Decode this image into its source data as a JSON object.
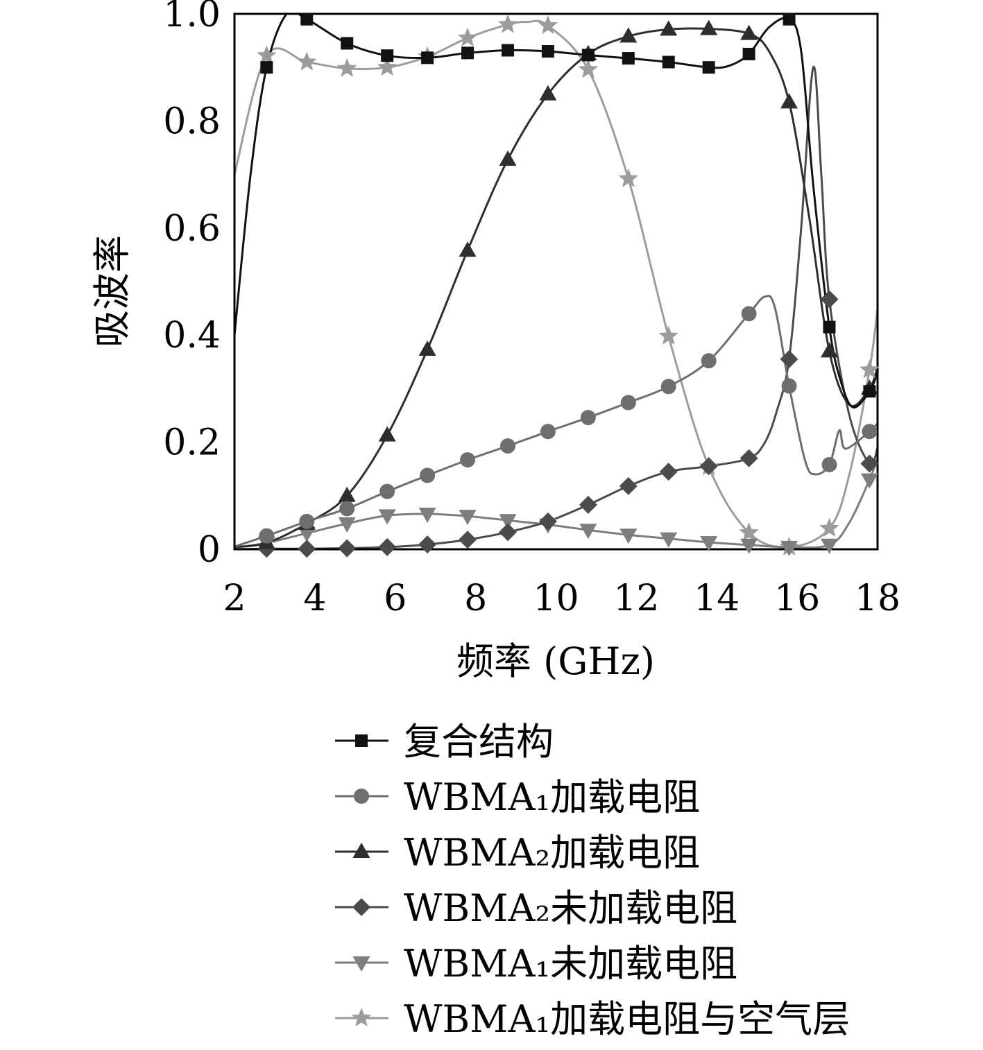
{
  "chart_data": {
    "type": "line",
    "xlabel": "频率 (GHz)",
    "ylabel": "吸波率",
    "xlim": [
      2,
      18
    ],
    "ylim": [
      0,
      1.0
    ],
    "xticks": [
      2,
      4,
      6,
      8,
      10,
      12,
      14,
      16,
      18
    ],
    "yticks": [
      0,
      0.2,
      0.4,
      0.6,
      0.8,
      1.0
    ],
    "ytick_labels": [
      "0",
      "0.2",
      "0.4",
      "0.6",
      "0.8",
      "1.0"
    ],
    "grid": false,
    "legend_position": "below-plot",
    "marker_x": [
      2.8,
      3.8,
      4.8,
      5.8,
      6.8,
      7.8,
      8.8,
      9.8,
      10.8,
      11.8,
      12.8,
      13.8,
      14.8,
      15.8,
      16.8,
      17.8
    ],
    "series": [
      {
        "name": "复合结构",
        "marker": "square",
        "color": "#111111",
        "x": [
          2.0,
          2.4,
          2.8,
          3.3,
          3.8,
          4.8,
          5.8,
          6.8,
          7.8,
          8.8,
          9.8,
          10.8,
          11.8,
          12.8,
          13.8,
          14.3,
          14.8,
          15.3,
          15.8,
          16.1,
          16.4,
          16.8,
          17.1,
          17.4,
          17.8,
          18.0
        ],
        "y": [
          0.4,
          0.7,
          0.9,
          1.0,
          0.99,
          0.945,
          0.922,
          0.918,
          0.927,
          0.932,
          0.93,
          0.923,
          0.917,
          0.91,
          0.9,
          0.903,
          0.925,
          0.975,
          0.99,
          0.93,
          0.68,
          0.415,
          0.31,
          0.265,
          0.295,
          0.33
        ]
      },
      {
        "name": "WBMA₁加载电阻",
        "marker": "circle",
        "color": "#6e6e6e",
        "x": [
          2.0,
          2.8,
          3.8,
          4.8,
          5.8,
          6.8,
          7.8,
          8.8,
          9.8,
          10.8,
          11.8,
          12.8,
          13.8,
          14.8,
          15.2,
          15.45,
          15.8,
          16.2,
          16.45,
          16.8,
          17.05,
          17.2,
          17.8,
          18.0
        ],
        "y": [
          0.005,
          0.025,
          0.052,
          0.076,
          0.108,
          0.138,
          0.167,
          0.193,
          0.22,
          0.246,
          0.274,
          0.304,
          0.352,
          0.44,
          0.472,
          0.45,
          0.305,
          0.165,
          0.14,
          0.158,
          0.222,
          0.188,
          0.22,
          0.235
        ]
      },
      {
        "name": "WBMA₂加载电阻",
        "marker": "triangle-up",
        "color": "#2e2e2e",
        "x": [
          2.0,
          2.8,
          3.8,
          4.8,
          5.8,
          6.8,
          7.8,
          8.8,
          9.8,
          10.8,
          11.8,
          12.8,
          13.8,
          14.8,
          15.3,
          15.8,
          16.3,
          16.8,
          17.3,
          17.8,
          18.0
        ],
        "y": [
          0.004,
          0.012,
          0.048,
          0.1,
          0.213,
          0.373,
          0.558,
          0.728,
          0.85,
          0.925,
          0.958,
          0.971,
          0.972,
          0.963,
          0.93,
          0.835,
          0.62,
          0.37,
          0.27,
          0.3,
          0.34
        ]
      },
      {
        "name": "WBMA₂未加载电阻",
        "marker": "diamond",
        "color": "#4b4b4b",
        "x": [
          2.0,
          2.8,
          3.8,
          4.8,
          5.8,
          6.8,
          7.8,
          8.8,
          9.8,
          10.8,
          11.8,
          12.8,
          13.8,
          14.8,
          15.2,
          15.5,
          15.8,
          16.1,
          16.4,
          16.6,
          16.8,
          17.3,
          17.8,
          18.0
        ],
        "y": [
          0.0,
          0.001,
          0.001,
          0.002,
          0.004,
          0.009,
          0.018,
          0.032,
          0.052,
          0.083,
          0.118,
          0.145,
          0.155,
          0.17,
          0.2,
          0.26,
          0.355,
          0.6,
          0.9,
          0.7,
          0.467,
          0.25,
          0.16,
          0.19
        ]
      },
      {
        "name": "WBMA₁未加载电阻",
        "marker": "triangle-down",
        "color": "#7d7d7d",
        "x": [
          2.0,
          2.8,
          3.8,
          4.8,
          5.8,
          6.8,
          7.8,
          8.8,
          9.8,
          10.8,
          11.8,
          12.8,
          13.8,
          14.8,
          15.8,
          16.8,
          17.3,
          17.8,
          18.0
        ],
        "y": [
          0.003,
          0.012,
          0.03,
          0.048,
          0.063,
          0.066,
          0.062,
          0.054,
          0.046,
          0.036,
          0.027,
          0.02,
          0.013,
          0.008,
          0.004,
          0.008,
          0.05,
          0.13,
          0.17
        ]
      },
      {
        "name": "WBMA₁加载电阻与空气层",
        "marker": "star",
        "color": "#9c9c9c",
        "x": [
          2.0,
          2.8,
          3.8,
          4.8,
          5.8,
          6.8,
          7.8,
          8.8,
          9.3,
          9.8,
          10.8,
          11.8,
          12.8,
          13.8,
          14.8,
          15.8,
          16.8,
          17.3,
          17.8,
          18.0
        ],
        "y": [
          0.7,
          0.922,
          0.91,
          0.898,
          0.9,
          0.92,
          0.955,
          0.98,
          0.985,
          0.978,
          0.896,
          0.692,
          0.398,
          0.154,
          0.031,
          0.004,
          0.039,
          0.14,
          0.335,
          0.45
        ]
      }
    ]
  }
}
